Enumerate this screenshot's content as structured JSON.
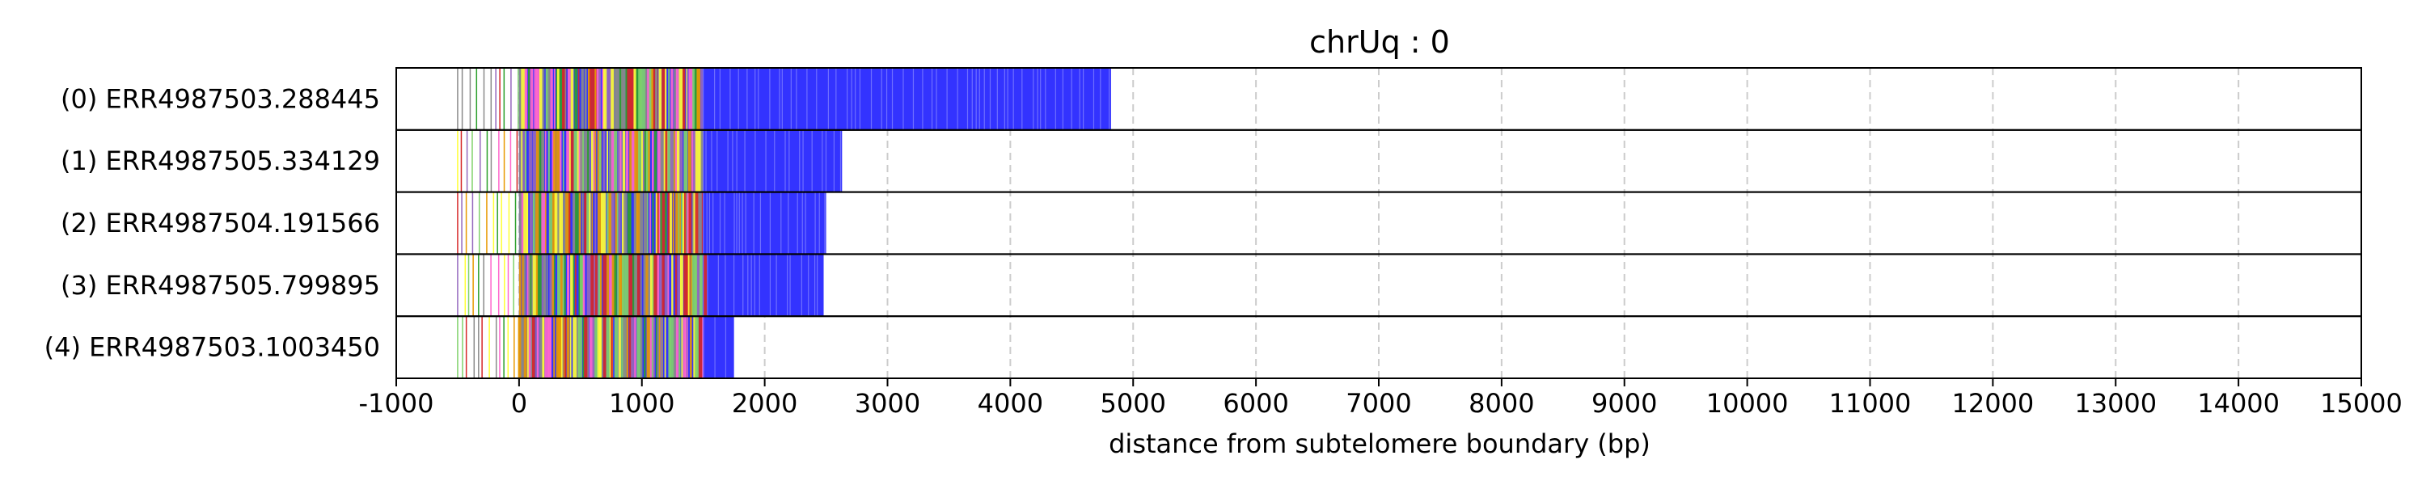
{
  "chart_data": {
    "type": "bar",
    "title": "chrUq : 0",
    "xlabel": "distance from subtelomere boundary (bp)",
    "ylabel": "",
    "xlim": [
      -1000,
      15000
    ],
    "xticks": [
      -1000,
      0,
      1000,
      2000,
      3000,
      4000,
      5000,
      6000,
      7000,
      8000,
      9000,
      10000,
      11000,
      12000,
      13000,
      14000,
      15000
    ],
    "x_grid": "dashed vertical lines",
    "colors": {
      "main": "#3333ff",
      "accents": [
        "#7fd26a",
        "#2ca02c",
        "#ffff33",
        "#ff66cc",
        "#d62728",
        "#8a8a8a",
        "#9467bd",
        "#e89a00"
      ],
      "grid": "#cccccc",
      "frame": "#000000"
    },
    "series": [
      {
        "name": "(0) ERR4987503.288445",
        "start": -500,
        "end": 4820
      },
      {
        "name": "(1) ERR4987505.334129",
        "start": -500,
        "end": 2630
      },
      {
        "name": "(2) ERR4987504.191566",
        "start": -500,
        "end": 2500
      },
      {
        "name": "(3) ERR4987505.799895",
        "start": -500,
        "end": 2480
      },
      {
        "name": "(4) ERR4987503.1003450",
        "start": -500,
        "end": 1750
      }
    ]
  }
}
